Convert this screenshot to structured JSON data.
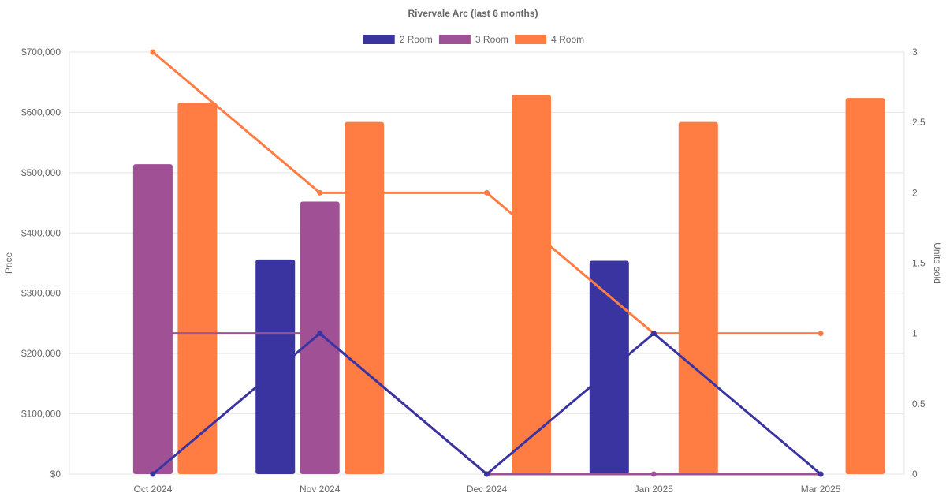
{
  "chart_data": {
    "type": "bar",
    "title": "Rivervale Arc (last 6 months)",
    "categories": [
      "Oct 2024",
      "Nov 2024",
      "Dec 2024",
      "Jan 2025",
      "Mar 2025"
    ],
    "y_left": {
      "label": "Price",
      "range": [
        0,
        700000
      ],
      "ticks": [
        {
          "value": 0,
          "label": "$0"
        },
        {
          "value": 100000,
          "label": "$100,000"
        },
        {
          "value": 200000,
          "label": "$200,000"
        },
        {
          "value": 300000,
          "label": "$300,000"
        },
        {
          "value": 400000,
          "label": "$400,000"
        },
        {
          "value": 500000,
          "label": "$500,000"
        },
        {
          "value": 600000,
          "label": "$600,000"
        },
        {
          "value": 700000,
          "label": "$700,000"
        }
      ]
    },
    "y_right": {
      "label": "Units sold",
      "range": [
        0,
        3
      ],
      "ticks": [
        {
          "value": 0,
          "label": "0"
        },
        {
          "value": 0.5,
          "label": "0.5"
        },
        {
          "value": 1,
          "label": "1"
        },
        {
          "value": 1.5,
          "label": "1.5"
        },
        {
          "value": 2,
          "label": "2"
        },
        {
          "value": 2.5,
          "label": "2.5"
        },
        {
          "value": 3,
          "label": "3"
        }
      ]
    },
    "legend_position": "top-center",
    "grid": true,
    "series": [
      {
        "name": "2 Room",
        "color": "#3a34a0",
        "prices": [
          null,
          356000,
          null,
          354000,
          null
        ],
        "units": [
          0,
          1,
          0,
          1,
          0
        ]
      },
      {
        "name": "3 Room",
        "color": "#a05195",
        "prices": [
          514000,
          452000,
          null,
          null,
          null
        ],
        "units": [
          1,
          1,
          0,
          0,
          0
        ]
      },
      {
        "name": "4 Room",
        "color": "#ff7c43",
        "prices": [
          616000,
          584000,
          629000,
          584000,
          624000
        ],
        "units": [
          3,
          2,
          2,
          1,
          1
        ]
      }
    ]
  }
}
